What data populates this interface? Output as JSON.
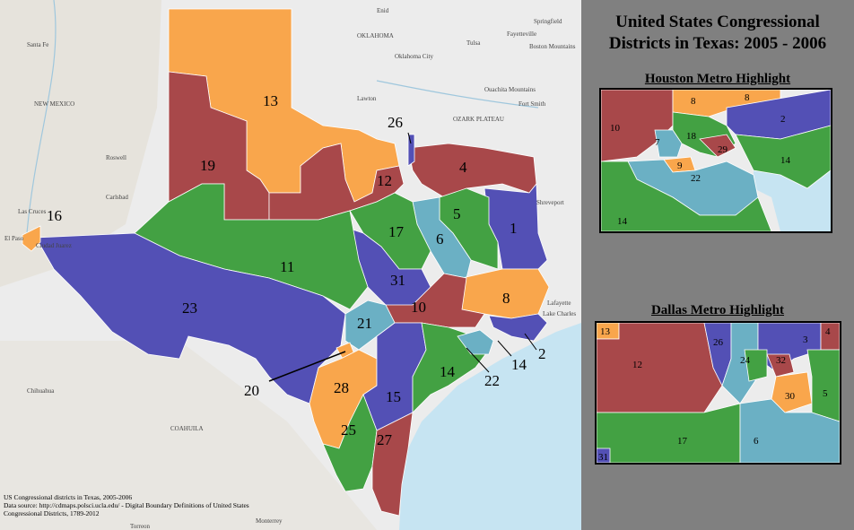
{
  "title_line1": "United States Congressional",
  "title_line2": "Districts in Texas: 2005 - 2006",
  "houston_title": "Houston Metro Highlight",
  "dallas_title": "Dallas Metro Highlight",
  "footer_line1": "US Congressional districts in Texas, 2005-2006",
  "footer_line2": "Data source: http://cdmaps.polsci.ucla.edu/ - Digital Boundary Definitions of United States",
  "footer_line3": "Congressional Districts, 1789-2012",
  "colors": {
    "orange": "#f9a64c",
    "red": "#a8484a",
    "green": "#43a143",
    "blue": "#5350b5",
    "teal": "#6bb0c4",
    "water": "#c6e4f2",
    "land": "#ececec"
  },
  "base_labels": [
    "Santa Fe",
    "NEW MEXICO",
    "Roswell",
    "Carlsbad",
    "Las Cruces",
    "El Paso",
    "Ciudad Juarez",
    "OKLAHOMA",
    "Oklahoma City",
    "Lawton",
    "Tulsa",
    "OZARK PLATEAU",
    "Fort Smith",
    "Shreveport",
    "Lafayette",
    "Lake Charles",
    "Chihuahua",
    "COAHUILA",
    "Monterrey",
    "Torreon",
    "Enid",
    "Springfield",
    "Fayetteville",
    "Ouachita Mountains",
    "Boston Mountains"
  ],
  "districts": [
    {
      "id": "1",
      "label": "1"
    },
    {
      "id": "2",
      "label": "2"
    },
    {
      "id": "4",
      "label": "4"
    },
    {
      "id": "5",
      "label": "5"
    },
    {
      "id": "6",
      "label": "6"
    },
    {
      "id": "8",
      "label": "8"
    },
    {
      "id": "10",
      "label": "10"
    },
    {
      "id": "11",
      "label": "11"
    },
    {
      "id": "12",
      "label": "12"
    },
    {
      "id": "13",
      "label": "13"
    },
    {
      "id": "14",
      "label": "14"
    },
    {
      "id": "15",
      "label": "15"
    },
    {
      "id": "16",
      "label": "16"
    },
    {
      "id": "17",
      "label": "17"
    },
    {
      "id": "19",
      "label": "19"
    },
    {
      "id": "20",
      "label": "20"
    },
    {
      "id": "21",
      "label": "21"
    },
    {
      "id": "22",
      "label": "22"
    },
    {
      "id": "23",
      "label": "23"
    },
    {
      "id": "25",
      "label": "25"
    },
    {
      "id": "26",
      "label": "26"
    },
    {
      "id": "27",
      "label": "27"
    },
    {
      "id": "28",
      "label": "28"
    },
    {
      "id": "31",
      "label": "31"
    }
  ],
  "houston_labels": [
    "8",
    "8",
    "10",
    "2",
    "18",
    "7",
    "29",
    "14",
    "9",
    "22",
    "14"
  ],
  "dallas_labels": [
    "13",
    "4",
    "12",
    "26",
    "3",
    "24",
    "32",
    "30",
    "5",
    "17",
    "6",
    "31"
  ]
}
